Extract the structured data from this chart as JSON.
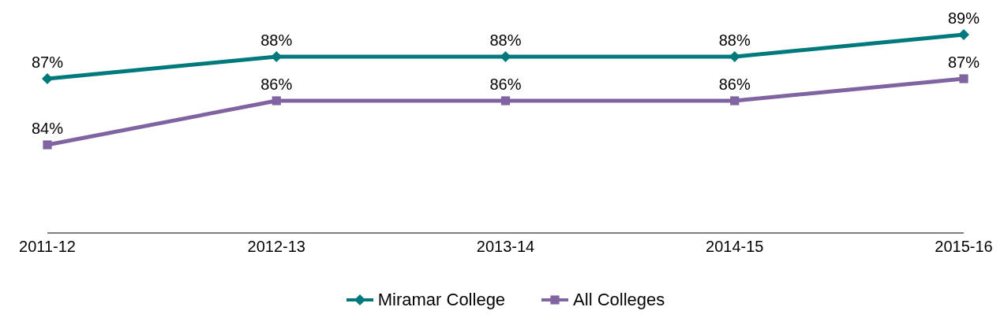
{
  "chart_data": {
    "type": "line",
    "categories": [
      "2011-12",
      "2012-13",
      "2013-14",
      "2014-15",
      "2015-16"
    ],
    "series": [
      {
        "name": "Miramar College",
        "color": "#00797c",
        "values": [
          87,
          88,
          88,
          88,
          89
        ],
        "value_labels": [
          "87%",
          "88%",
          "88%",
          "88%",
          "89%"
        ],
        "marker": "diamond"
      },
      {
        "name": "All Colleges",
        "color": "#8064a2",
        "values": [
          84,
          86,
          86,
          86,
          87
        ],
        "value_labels": [
          "84%",
          "86%",
          "86%",
          "86%",
          "87%"
        ],
        "marker": "square"
      }
    ],
    "legend": "bottom",
    "grid": false,
    "line_style": "solid"
  }
}
